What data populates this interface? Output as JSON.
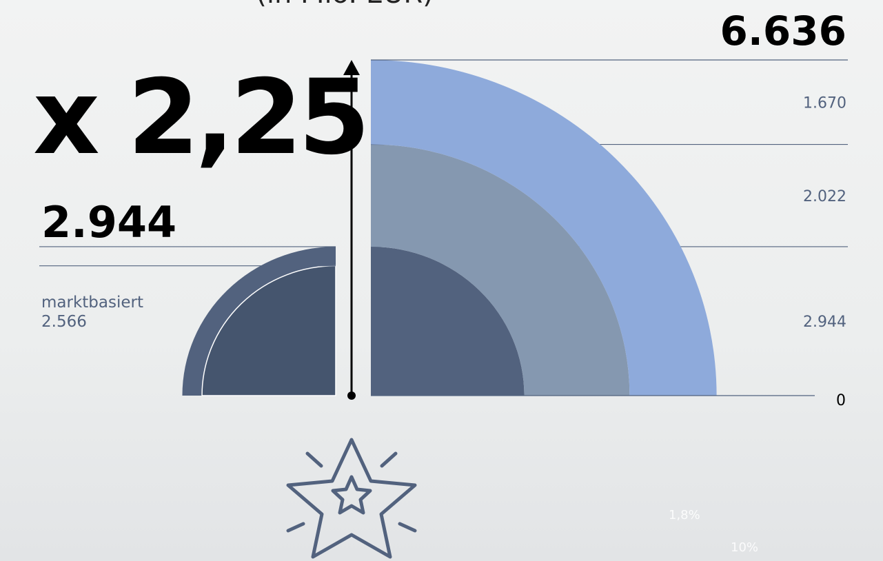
{
  "chart_data": {
    "type": "quarter-stack",
    "title": "(in Mio. EUR)",
    "growth_label": "x 2,25",
    "total": 6636,
    "total_label": "6.636",
    "values": [
      2944,
      2022,
      1670
    ],
    "value_labels": [
      "2.944",
      "2.022",
      "1.670"
    ],
    "colors": [
      "#52627e",
      "#8598b0",
      "#8eaadb"
    ],
    "ylim": [
      0,
      6636
    ],
    "yticks": [
      0
    ],
    "base": {
      "name": "marktbasiert",
      "values": [
        2944,
        2566
      ],
      "value_labels": [
        "2.944",
        "2.566"
      ],
      "colors": [
        "#52627e",
        "#45556e"
      ]
    },
    "notes": [
      "1,8%",
      "10%"
    ]
  }
}
